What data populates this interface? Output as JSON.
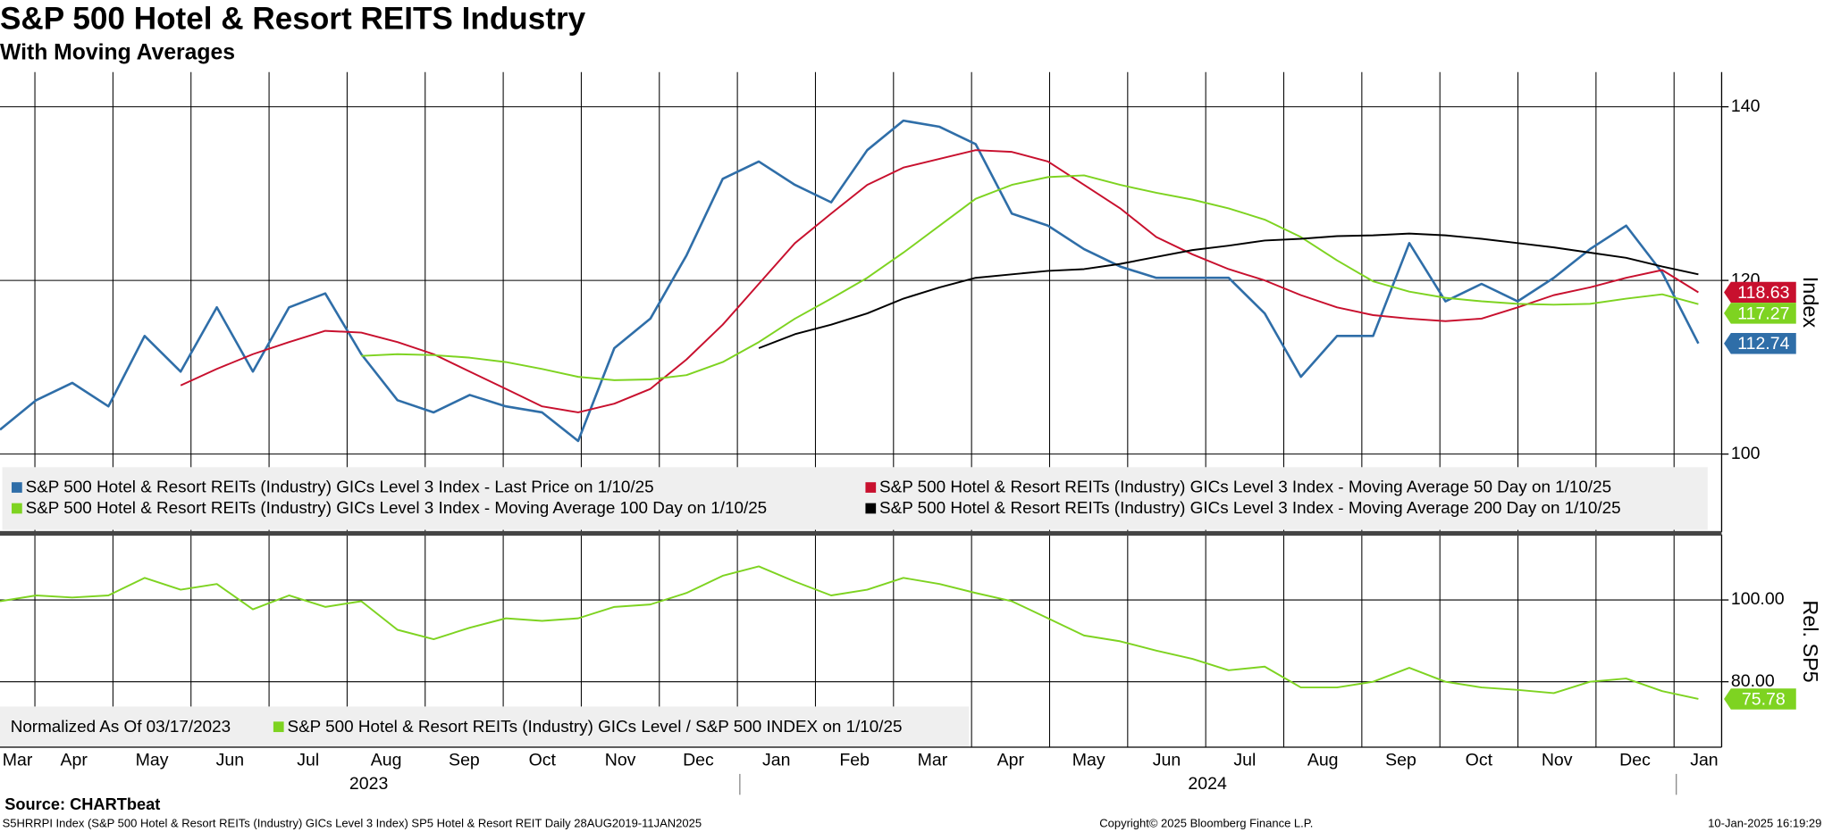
{
  "title": "S&P 500 Hotel & Resort REITS Industry",
  "subtitle": "With Moving Averages",
  "x_axis": {
    "months": [
      "Mar",
      "Apr",
      "May",
      "Jun",
      "Jul",
      "Aug",
      "Sep",
      "Oct",
      "Nov",
      "Dec",
      "Jan",
      "Feb",
      "Mar",
      "Apr",
      "May",
      "Jun",
      "Jul",
      "Aug",
      "Sep",
      "Oct",
      "Nov",
      "Dec",
      "Jan"
    ],
    "years": [
      "2023",
      "2024"
    ]
  },
  "source": "Source: CHARTbeat",
  "footer": {
    "left": "S5HRRPI Index (S&P 500 Hotel & Resort REITs (Industry) GICs Level 3 Index) SP5 Hotel & Resort REIT  Daily 28AUG2019-11JAN2025",
    "center": "Copyright© 2025 Bloomberg Finance L.P.",
    "right": "10-Jan-2025 16:19:29"
  },
  "chart_data": [
    {
      "type": "line",
      "ylabel": "Index",
      "ylim": [
        91,
        144
      ],
      "yticks": [
        100,
        120,
        140
      ],
      "grid": true,
      "series": [
        {
          "name": "S&P 500 Hotel & Resort REITs (Industry) GICs Level 3 Index - Last Price on 1/10/25",
          "color": "#2f6ea8",
          "end_label": true,
          "values": [
            102.8,
            106.2,
            108.2,
            105.5,
            113.6,
            109.5,
            116.9,
            109.5,
            116.9,
            118.5,
            111.5,
            106.2,
            104.8,
            106.8,
            105.5,
            104.8,
            101.5,
            112.2,
            115.6,
            122.9,
            131.7,
            133.7,
            131,
            129,
            135,
            138.4,
            137.7,
            135.7,
            127.7,
            126.3,
            123.6,
            121.6,
            120.3,
            120.3,
            120.3,
            116.2,
            108.9,
            113.6,
            113.6,
            124.3,
            117.6,
            119.6,
            117.6,
            120.3,
            123.6,
            126.3,
            120.9,
            112.74
          ]
        },
        {
          "name": "S&P 500 Hotel & Resort REITs (Industry) GICs Level 3 Index - Moving Average 50 Day on 1/10/25",
          "color": "#c8102e",
          "end_label": true,
          "values": [
            null,
            null,
            null,
            null,
            null,
            107.9,
            109.8,
            111.5,
            112.9,
            114.2,
            114,
            112.9,
            111.5,
            109.5,
            107.5,
            105.5,
            104.8,
            105.8,
            107.5,
            110.9,
            114.9,
            119.6,
            124.3,
            127.7,
            131,
            133,
            134,
            135,
            134.8,
            133.7,
            131,
            128.3,
            125,
            123,
            121.3,
            120,
            118.3,
            116.9,
            116,
            115.6,
            115.3,
            115.6,
            116.9,
            118.3,
            119.2,
            120.3,
            121.2,
            118.63
          ]
        },
        {
          "name": "S&P 500 Hotel & Resort REITs (Industry) GICs Level 3 Index - Moving Average 100 Day on 1/10/25",
          "color": "#7ed321",
          "end_label": true,
          "values": [
            null,
            null,
            null,
            null,
            null,
            null,
            null,
            null,
            null,
            null,
            111.3,
            111.5,
            111.4,
            111.1,
            110.6,
            109.8,
            108.9,
            108.5,
            108.6,
            109.1,
            110.6,
            112.9,
            115.6,
            117.9,
            120.3,
            123.2,
            126.3,
            129.4,
            131,
            131.9,
            132.1,
            131,
            130.1,
            129.3,
            128.3,
            127,
            125,
            122.3,
            119.9,
            118.7,
            118,
            117.6,
            117.3,
            117.2,
            117.3,
            117.9,
            118.4,
            117.27
          ]
        },
        {
          "name": "S&P 500 Hotel & Resort REITs (Industry) GICs Level 3 Index - Moving Average 200 Day on 1/10/25",
          "color": "#000000",
          "end_label": false,
          "values": [
            null,
            null,
            null,
            null,
            null,
            null,
            null,
            null,
            null,
            null,
            null,
            null,
            null,
            null,
            null,
            null,
            null,
            null,
            null,
            null,
            null,
            112.2,
            113.8,
            114.9,
            116.2,
            117.9,
            119.2,
            120.3,
            120.7,
            121.1,
            121.3,
            121.9,
            122.7,
            123.5,
            124,
            124.6,
            124.8,
            125.1,
            125.2,
            125.4,
            125.2,
            124.8,
            124.3,
            123.8,
            123.2,
            122.6,
            121.6,
            120.7
          ]
        }
      ]
    },
    {
      "type": "line",
      "ylabel": "Rel. SP5",
      "annotation": "Normalized As Of 03/17/2023",
      "ylim": [
        64,
        116
      ],
      "yticks": [
        {
          "value": 80,
          "label": "80.00"
        },
        {
          "value": 100,
          "label": "100.00"
        }
      ],
      "grid": true,
      "series": [
        {
          "name": "S&P 500 Hotel & Resort REITs (Industry) GICs Level / S&P 500 INDEX on 1/10/25",
          "color": "#7ed321",
          "end_label": true,
          "values": [
            99.7,
            101.1,
            100.6,
            101.1,
            105.4,
            102.5,
            103.9,
            97.7,
            101.1,
            98.3,
            99.7,
            92.7,
            90.4,
            93.2,
            95.5,
            94.9,
            95.5,
            98.3,
            98.9,
            101.7,
            105.9,
            108.2,
            104.5,
            101.1,
            102.5,
            105.4,
            103.9,
            101.7,
            99.7,
            95.5,
            91.3,
            89.9,
            87.6,
            85.6,
            82.8,
            83.7,
            78.6,
            78.6,
            80,
            83.4,
            80,
            78.6,
            78,
            77.2,
            80,
            80.8,
            77.7,
            75.78
          ]
        }
      ]
    }
  ]
}
